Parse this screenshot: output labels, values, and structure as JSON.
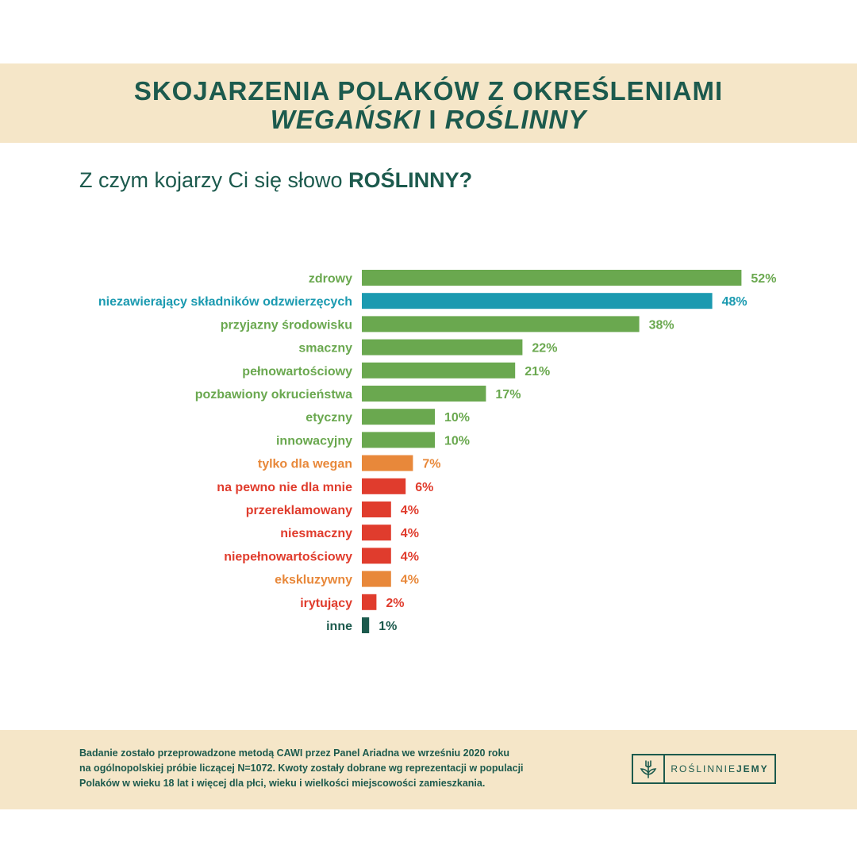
{
  "header": {
    "title_line1": "SKOJARZENIA POLAKÓW Z OKREŚLENIAMI",
    "title_word1": "WEGAŃSKI",
    "title_and": "I",
    "title_word2": "ROŚLINNY"
  },
  "question": {
    "prefix": "Z czym kojarzy Ci się słowo",
    "keyword": "ROŚLINNY?"
  },
  "colors": {
    "green": "#6aa84f",
    "teal": "#1b9ab0",
    "orange": "#e8883a",
    "red": "#e03c2d",
    "dark": "#1c5a4d",
    "beige": "#f5e6c8"
  },
  "chart_data": {
    "type": "bar",
    "orientation": "horizontal",
    "categories": [
      "zdrowy",
      "niezawierający składników odzwierzęcych",
      "przyjazny środowisku",
      "smaczny",
      "pełnowartościowy",
      "pozbawiony okrucieństwa",
      "etyczny",
      "innowacyjny",
      "tylko dla wegan",
      "na pewno nie dla mnie",
      "przereklamowany",
      "niesmaczny",
      "niepełnowartościowy",
      "ekskluzywny",
      "irytujący",
      "inne"
    ],
    "values": [
      52,
      48,
      38,
      22,
      21,
      17,
      10,
      10,
      7,
      6,
      4,
      4,
      4,
      4,
      2,
      1
    ],
    "value_labels": [
      "52%",
      "48%",
      "38%",
      "22%",
      "21%",
      "17%",
      "10%",
      "10%",
      "7%",
      "6%",
      "4%",
      "4%",
      "4%",
      "4%",
      "2%",
      "1%"
    ],
    "bar_colors": [
      "green",
      "teal",
      "green",
      "green",
      "green",
      "green",
      "green",
      "green",
      "orange",
      "red",
      "red",
      "red",
      "red",
      "orange",
      "red",
      "dark"
    ],
    "unit": "%"
  },
  "footer": {
    "note_line1": "Badanie zostało przeprowadzone metodą CAWI przez Panel Ariadna we wrześniu 2020 roku",
    "note_line2": "na ogólnopolskiej próbie liczącej N=1072. Kwoty zostały dobrane wg reprezentacji w populacji",
    "note_line3": "Polaków w wieku 18 lat i więcej dla płci, wieku i wielkości miejscowości zamieszkania.",
    "logo_text_a": "ROŚLINNIE",
    "logo_text_b": "JEMY",
    "logo_icon": "plant-fork-icon"
  }
}
